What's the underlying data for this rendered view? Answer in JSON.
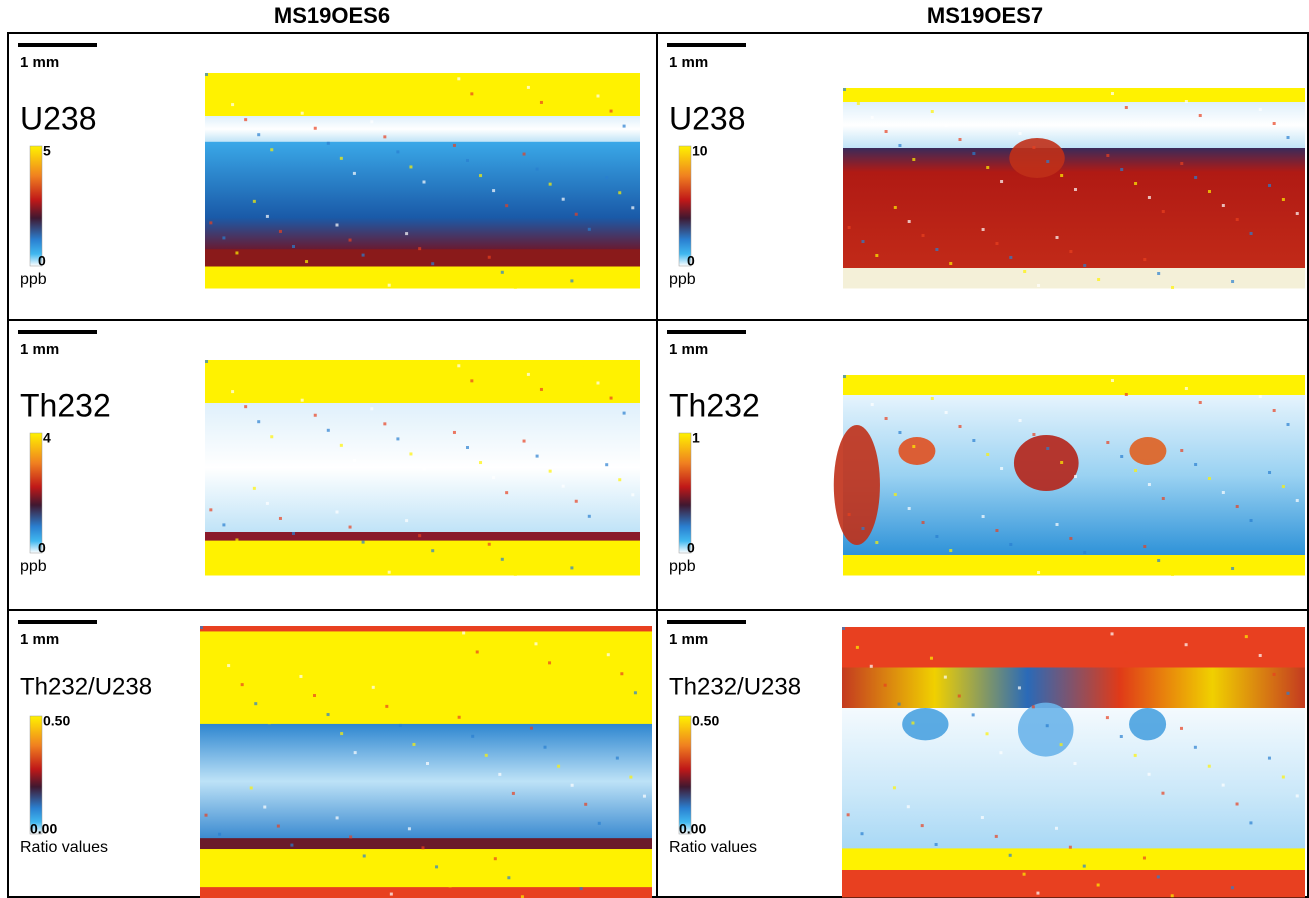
{
  "columns": [
    {
      "title": "MS19OES6"
    },
    {
      "title": "MS19OES7"
    }
  ],
  "rows": [
    {
      "cells": [
        {
          "scale": "1 mm",
          "label": "U238",
          "max": "5",
          "min": "0",
          "unit": "ppb"
        },
        {
          "scale": "1 mm",
          "label": "U238",
          "max": "10",
          "min": "0",
          "unit": "ppb"
        }
      ]
    },
    {
      "cells": [
        {
          "scale": "1 mm",
          "label": "Th232",
          "max": "4",
          "min": "0",
          "unit": "ppb"
        },
        {
          "scale": "1 mm",
          "label": "Th232",
          "max": "1",
          "min": "0",
          "unit": "ppb"
        }
      ]
    },
    {
      "cells": [
        {
          "scale": "1 mm",
          "label": "Th232/U238",
          "max": "0.50",
          "min": "0.00",
          "unit": "Ratio values"
        },
        {
          "scale": "1 mm",
          "label": "Th232/U238",
          "max": "0.50",
          "min": "0.00",
          "unit": "Ratio values"
        }
      ]
    }
  ]
}
